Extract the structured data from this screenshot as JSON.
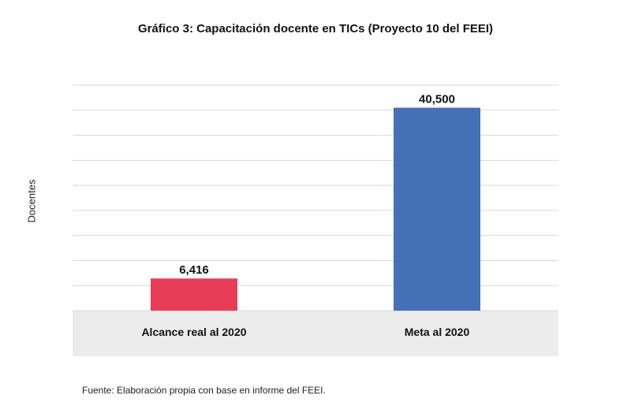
{
  "chart_data": {
    "type": "bar",
    "title": "Gráfico 3: Capacitación docente en TICs (Proyecto 10 del FEEI)",
    "ylabel": "Docentes",
    "xlabel": "",
    "categories": [
      "Alcance real al 2020",
      "Meta al 2020"
    ],
    "values": [
      6416,
      40500
    ],
    "value_labels": [
      "6,416",
      "40,500"
    ],
    "ylim": [
      0,
      45000
    ],
    "grid": true,
    "legend": "none",
    "colors": [
      "#e83d56",
      "#4570b7"
    ]
  },
  "footnote": "Fuente: Elaboración propia con base en informe del FEEI.",
  "style": {
    "gridline_color": "#d9d9d9",
    "category_band_color": "#ececec"
  }
}
